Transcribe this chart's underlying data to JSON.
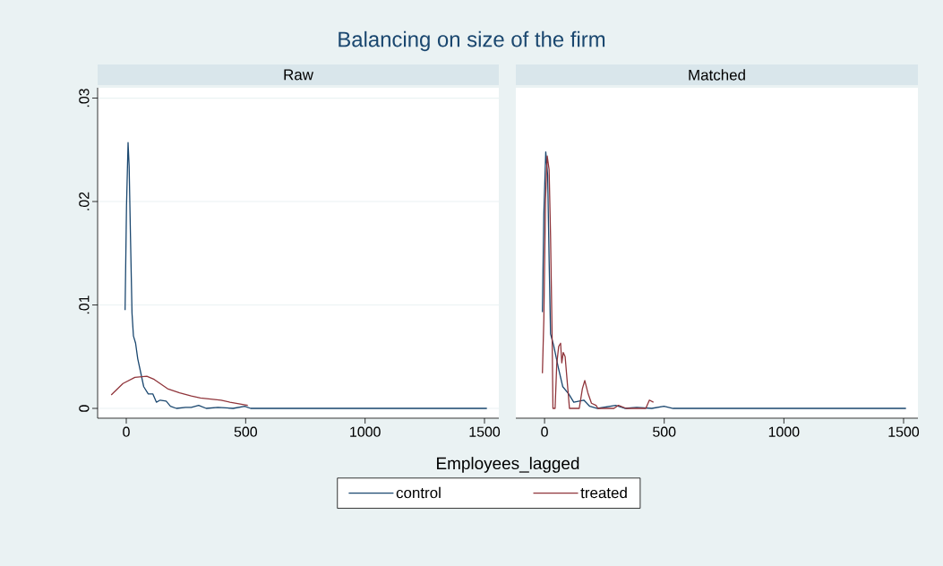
{
  "chart_data": [
    {
      "type": "line",
      "title": "Balancing on size of the firm",
      "subtitle": "Raw",
      "xlabel": "Employees_lagged",
      "xlim": [
        -120,
        1560
      ],
      "ylim": [
        -0.00095,
        0.031
      ],
      "xticks": [
        0,
        500,
        1000,
        1500
      ],
      "yticks": [
        0,
        {
          "value": 0.01,
          "label": ".01"
        },
        {
          "value": 0.02,
          "label": ".02"
        },
        {
          "value": 0.03,
          "label": ".03"
        }
      ],
      "grid": "y",
      "legend": "bottom",
      "series": [
        {
          "name": "control",
          "color": "#1a476f",
          "x": [
            -5,
            1,
            7.5,
            12,
            17,
            24,
            30,
            39,
            48,
            61,
            73,
            92,
            111,
            126,
            142,
            167,
            185,
            210,
            248,
            272,
            303,
            335,
            384,
            447,
            496,
            521,
            1510
          ],
          "values": [
            0.0095,
            0.0196,
            0.0257,
            0.0234,
            0.0173,
            0.0092,
            0.007,
            0.0063,
            0.0048,
            0.0034,
            0.0021,
            0.0014,
            0.0014,
            0.0006,
            0.0008,
            0.0007,
            0.0002,
            0,
            0.0001,
            0.0001,
            0.0003,
            0,
            0.0001,
            0,
            0.0002,
            0,
            0
          ]
        },
        {
          "name": "treated",
          "color": "#90353b",
          "x": [
            -63,
            -14,
            36,
            86,
            117,
            173,
            223,
            272,
            310,
            397,
            434,
            509
          ],
          "values": [
            0.0013,
            0.0024,
            0.003,
            0.0031,
            0.0028,
            0.0019,
            0.0015,
            0.0012,
            0.001,
            0.0008,
            0.0006,
            0.0003
          ]
        }
      ]
    },
    {
      "type": "line",
      "subtitle": "Matched",
      "tick_labels": "x",
      "xlim": [
        -120,
        1560
      ],
      "ylim": [
        -0.00095,
        0.031
      ],
      "xticks": [
        0,
        500,
        1000,
        1500
      ],
      "yticks": [
        {
          "value": 0,
          "label": null
        },
        {
          "value": 0.01,
          "label": null
        },
        {
          "value": 0.02,
          "label": null
        },
        {
          "value": 0.03,
          "label": null
        }
      ],
      "grid": "y",
      "series": [
        {
          "color": "#1a476f",
          "x": [
            -9,
            -3,
            5,
            13,
            19,
            25,
            38,
            57,
            76,
            101,
            122,
            164,
            189,
            221,
            297,
            335,
            385,
            448,
            499,
            537,
            1510
          ],
          "values": [
            0.0093,
            0.0188,
            0.0248,
            0.0225,
            0.0144,
            0.0072,
            0.0061,
            0.004,
            0.0021,
            0.0014,
            0.0006,
            0.0008,
            0.0002,
            0,
            0.0003,
            0,
            0.0001,
            0,
            0.0002,
            0,
            0
          ]
        },
        {
          "color": "#90353b",
          "x": [
            -9,
            -3,
            4,
            11,
            19,
            25,
            32,
            35,
            44,
            51,
            59,
            67,
            72,
            78,
            86,
            104,
            145,
            158,
            168,
            181,
            196,
            215,
            223,
            290,
            309,
            341,
            423,
            438,
            455
          ],
          "values": [
            0.0034,
            0.0086,
            0.0202,
            0.0244,
            0.0231,
            0.0167,
            0.0063,
            0,
            0,
            0.0043,
            0.006,
            0.0063,
            0.0044,
            0.0054,
            0.005,
            0,
            0,
            0.0019,
            0.0027,
            0.0015,
            0.0005,
            0.0003,
            0,
            0,
            0.0003,
            0,
            0,
            0.0008,
            0.0006
          ]
        }
      ]
    }
  ]
}
